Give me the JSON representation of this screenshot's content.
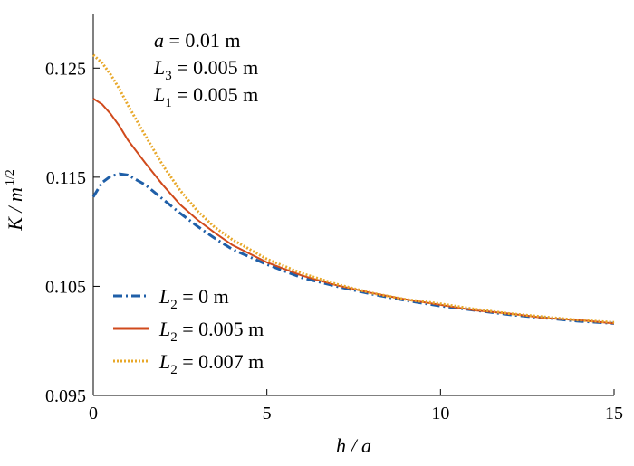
{
  "chart_data": {
    "type": "line",
    "xlabel": "h / a",
    "ylabel": "K / m",
    "ylabel_sup": "1/2",
    "xlim": [
      0,
      15
    ],
    "ylim": [
      0.095,
      0.13
    ],
    "xticks": [
      "0",
      "5",
      "10",
      "15"
    ],
    "yticks": [
      "0.095",
      "0.105",
      "0.115",
      "0.125"
    ],
    "grid": false,
    "legend_position": "bottom-left",
    "annotations": [
      {
        "var": "a",
        "sub": "",
        "text": "= 0.01 m"
      },
      {
        "var": "L",
        "sub": "3",
        "text": "= 0.005 m"
      },
      {
        "var": "L",
        "sub": "1",
        "text": "= 0.005 m"
      }
    ],
    "series": [
      {
        "name": "L2 = 0 m",
        "legend_var": "L",
        "legend_sub": "2",
        "legend_text": "= 0 m",
        "color": "#1f5fa8",
        "style": "dashdot",
        "x": [
          0,
          0.25,
          0.5,
          0.75,
          1,
          1.5,
          2,
          2.5,
          3,
          3.5,
          4,
          5,
          6,
          7,
          8,
          9,
          10,
          11,
          12,
          13,
          14,
          15
        ],
        "y": [
          0.1132,
          0.1145,
          0.1151,
          0.1153,
          0.1152,
          0.1143,
          0.113,
          0.1117,
          0.1105,
          0.1094,
          0.1084,
          0.107,
          0.1058,
          0.105,
          0.1043,
          0.1037,
          0.1032,
          0.1028,
          0.1024,
          0.1021,
          0.1018,
          0.1016
        ]
      },
      {
        "name": "L2 = 0.005 m",
        "legend_var": "L",
        "legend_sub": "2",
        "legend_text": "= 0.005 m",
        "color": "#d04a1c",
        "style": "solid",
        "x": [
          0,
          0.25,
          0.5,
          0.75,
          1,
          1.5,
          2,
          2.5,
          3,
          3.5,
          4,
          5,
          6,
          7,
          8,
          9,
          10,
          11,
          12,
          13,
          14,
          15
        ],
        "y": [
          0.1222,
          0.1217,
          0.1208,
          0.1197,
          0.1184,
          0.1163,
          0.1143,
          0.1125,
          0.1111,
          0.1099,
          0.1088,
          0.1072,
          0.106,
          0.1051,
          0.1044,
          0.1038,
          0.1033,
          0.1028,
          0.1025,
          0.1021,
          0.1019,
          0.1016
        ]
      },
      {
        "name": "L2 = 0.007 m",
        "legend_var": "L",
        "legend_sub": "2",
        "legend_text": "= 0.007 m",
        "color": "#e8a82a",
        "style": "dotted",
        "x": [
          0,
          0.25,
          0.5,
          0.75,
          1,
          1.5,
          2,
          2.5,
          3,
          3.5,
          4,
          5,
          6,
          7,
          8,
          9,
          10,
          11,
          12,
          13,
          14,
          15
        ],
        "y": [
          0.1262,
          0.1255,
          0.1244,
          0.1231,
          0.1216,
          0.1188,
          0.1161,
          0.1138,
          0.1119,
          0.1104,
          0.1093,
          0.1075,
          0.1062,
          0.1052,
          0.1044,
          0.1038,
          0.1034,
          0.1029,
          0.1025,
          0.1022,
          0.1019,
          0.1017
        ]
      }
    ]
  }
}
